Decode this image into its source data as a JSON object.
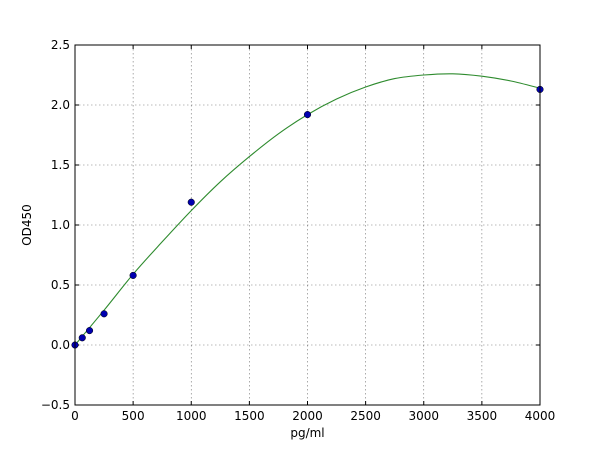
{
  "chart_data": {
    "type": "scatter",
    "title": "",
    "xlabel": "pg/ml",
    "ylabel": "OD450",
    "xlim": [
      0,
      4000
    ],
    "ylim": [
      -0.5,
      2.5
    ],
    "x_ticks": [
      0,
      500,
      1000,
      1500,
      2000,
      2500,
      3000,
      3500,
      4000
    ],
    "y_ticks": [
      -0.5,
      0.0,
      0.5,
      1.0,
      1.5,
      2.0,
      2.5
    ],
    "x_tick_labels": [
      "0",
      "500",
      "1000",
      "1500",
      "2000",
      "2500",
      "3000",
      "3500",
      "4000"
    ],
    "y_tick_labels": [
      "−0.5",
      "0.0",
      "0.5",
      "1.0",
      "1.5",
      "2.0",
      "2.5"
    ],
    "grid": true,
    "series": [
      {
        "kind": "points",
        "color": "#0000b0",
        "x": [
          0,
          62.5,
          125,
          250,
          500,
          1000,
          2000,
          4000
        ],
        "y": [
          0.0,
          0.06,
          0.12,
          0.26,
          0.58,
          1.19,
          1.92,
          2.13
        ]
      },
      {
        "kind": "fit-curve",
        "color": "#2e8b2e",
        "x": [
          0,
          250,
          500,
          750,
          1000,
          1250,
          1500,
          1750,
          2000,
          2250,
          2500,
          2750,
          3000,
          3250,
          3500,
          3750,
          4000
        ],
        "y": [
          0.0,
          0.29,
          0.59,
          0.86,
          1.12,
          1.36,
          1.57,
          1.76,
          1.92,
          2.05,
          2.15,
          2.22,
          2.25,
          2.26,
          2.24,
          2.2,
          2.14
        ]
      }
    ]
  }
}
